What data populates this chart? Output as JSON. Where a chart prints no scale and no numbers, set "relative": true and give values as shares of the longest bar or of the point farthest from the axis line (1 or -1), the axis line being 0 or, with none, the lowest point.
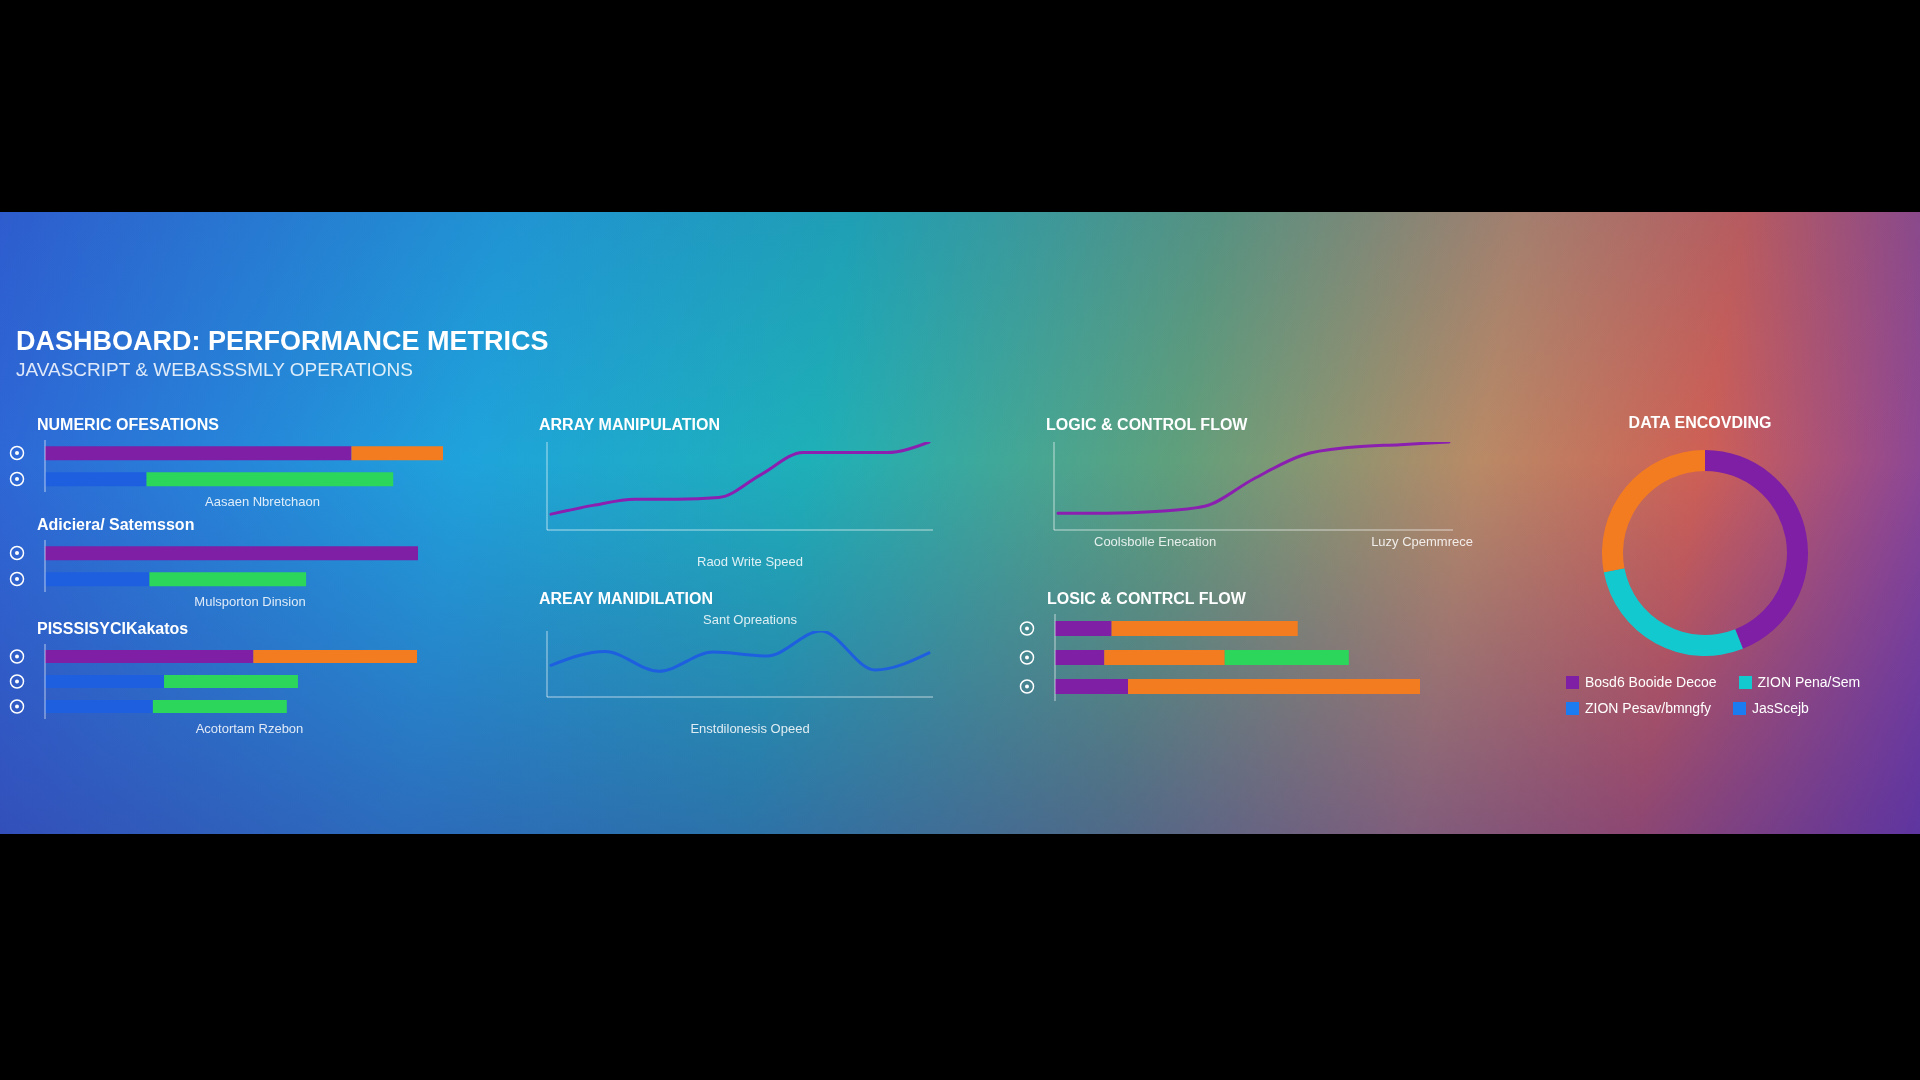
{
  "chart_data": [
    {
      "type": "other",
      "title": "DASHBOARD: PERFORMANCE METRICS",
      "subtitle": "JAVASCRIPT & WEBASSSMLY OPERATIONS"
    },
    {
      "type": "bar",
      "title": "NUMERIC OFESATIONS",
      "xlabel": "Aasaen Nbretchaon",
      "orientation": "horizontal",
      "stacked": true,
      "relative": true,
      "categories": [
        null,
        null
      ],
      "series": [
        {
          "color": "#7e1fa6",
          "values": [
            0.77,
            null
          ]
        },
        {
          "color": "#1e5fe0",
          "values": [
            null,
            0.255
          ]
        },
        {
          "color": "#f47c20",
          "values": [
            0.23,
            null
          ]
        },
        {
          "color": "#2bd65a",
          "values": [
            null,
            0.62
          ]
        }
      ]
    },
    {
      "type": "bar",
      "title": "Adiciera/ Satemsson",
      "xlabel": "Mulsporton Dinsion",
      "orientation": "horizontal",
      "stacked": true,
      "relative": true,
      "categories": [
        null,
        null
      ],
      "series": [
        {
          "color": "#7e1fa6",
          "values": [
            1.0,
            null
          ]
        },
        {
          "color": "#1e5fe0",
          "values": [
            null,
            0.28
          ]
        },
        {
          "color": "#2bd65a",
          "values": [
            null,
            0.42
          ]
        }
      ]
    },
    {
      "type": "bar",
      "title": "PISSSISYCIKakatos",
      "xlabel": "Acotortam Rzebon",
      "orientation": "horizontal",
      "stacked": true,
      "relative": true,
      "categories": [
        null,
        null,
        null
      ],
      "series": [
        {
          "color": "#7e1fa6",
          "values": [
            0.56,
            null,
            null
          ]
        },
        {
          "color": "#1e5fe0",
          "values": [
            null,
            0.32,
            0.29
          ]
        },
        {
          "color": "#f47c20",
          "values": [
            0.44,
            null,
            null
          ]
        },
        {
          "color": "#2bd65a",
          "values": [
            null,
            0.36,
            0.36
          ]
        }
      ]
    },
    {
      "type": "line",
      "title": "ARRAY MANIPULATION",
      "xlabel": "Raod Write Speed",
      "relative": true,
      "marker": "none",
      "categories": [
        null,
        null,
        null,
        null,
        null,
        null,
        null,
        null,
        null,
        null
      ],
      "series": [
        {
          "color": "#8a1fb0",
          "values": [
            0.18,
            0.28,
            0.35,
            0.35,
            0.37,
            0.63,
            0.88,
            0.88,
            0.88,
            1.0
          ]
        }
      ]
    },
    {
      "type": "line",
      "title": "AREAY MANIDILATION",
      "subtitle": "Sant Opreations",
      "xlabel": "Enstdilonesis Opeed",
      "relative": true,
      "marker": "none",
      "categories": [
        null,
        null,
        null,
        null,
        null,
        null,
        null,
        null
      ],
      "series": [
        {
          "color": "#1e5fe0",
          "values": [
            0.48,
            0.69,
            0.39,
            0.68,
            0.62,
            1.0,
            0.41,
            0.67
          ]
        }
      ]
    },
    {
      "type": "line",
      "title": "LOGIC & CONTROL FLOW",
      "relative": true,
      "marker": "none",
      "categories": [
        null,
        null,
        null,
        null,
        null,
        null,
        null,
        null,
        null
      ],
      "annotations": [
        "Coolsbolle Enecation",
        "Luzy Cpemmrece"
      ],
      "series": [
        {
          "color": "#8a1fb0",
          "values": [
            0.19,
            0.19,
            0.21,
            0.27,
            0.58,
            0.85,
            0.94,
            0.97,
            1.0
          ]
        }
      ]
    },
    {
      "type": "bar",
      "title": "LOSIC & CONTRCL FLOW",
      "orientation": "horizontal",
      "stacked": true,
      "relative": true,
      "categories": [
        null,
        null,
        null
      ],
      "series": [
        {
          "color": "#7e1fa6",
          "values": [
            0.155,
            0.135,
            0.2
          ]
        },
        {
          "color": "#f47c20",
          "values": [
            0.51,
            0.33,
            0.8
          ]
        },
        {
          "color": "#2bd65a",
          "values": [
            null,
            0.34,
            null
          ]
        }
      ]
    },
    {
      "type": "donut",
      "title": "DATA ENCOVDING",
      "legend": "bottom",
      "categories": [
        "Bosd6 Booide Decoe",
        "ZION Pena/Sem",
        null
      ],
      "values": [
        44,
        28,
        28
      ],
      "colors": [
        "#7e1fa6",
        "#12c9cf",
        "#f47c20"
      ],
      "annotations": [
        "ZION Pesav/bmngfy",
        "JasScejb"
      ]
    }
  ]
}
